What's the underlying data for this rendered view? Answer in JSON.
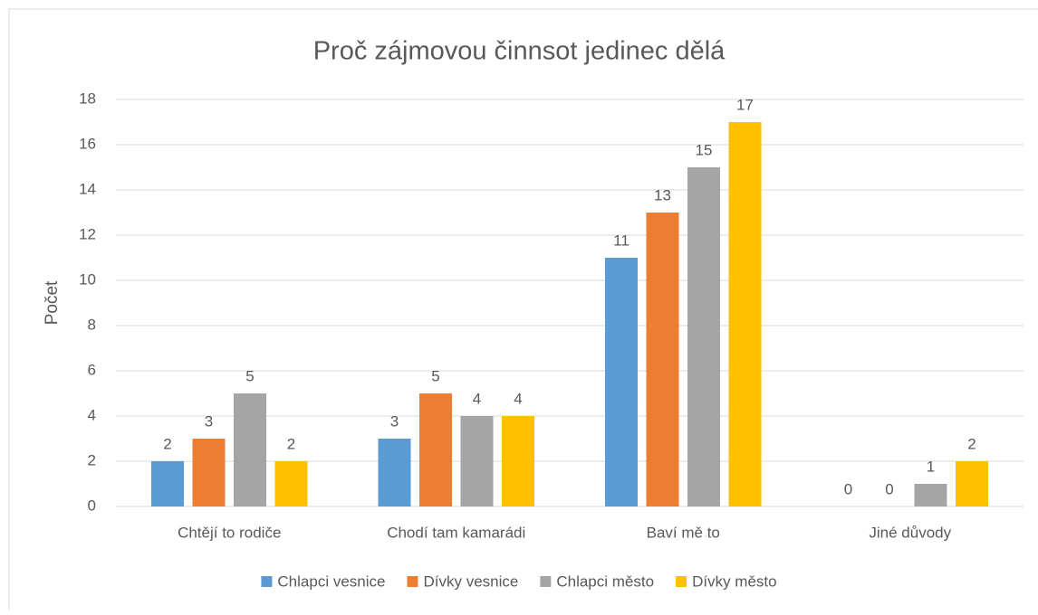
{
  "chart_data": {
    "type": "bar",
    "title": "Proč zájmovou činnsot jedinec dělá",
    "y_label": "Počet",
    "categories": [
      "Chtějí to rodiče",
      "Chodí tam kamarádi",
      "Baví mě to",
      "Jiné důvody"
    ],
    "series": [
      {
        "name": "Chlapci vesnice",
        "color": "#5b9bd5",
        "values": [
          2,
          3,
          11,
          0
        ]
      },
      {
        "name": "Dívky vesnice",
        "color": "#ed7d31",
        "values": [
          3,
          5,
          13,
          0
        ]
      },
      {
        "name": "Chlapci město",
        "color": "#a5a5a5",
        "values": [
          5,
          4,
          15,
          1
        ]
      },
      {
        "name": "Dívky město",
        "color": "#ffc000",
        "values": [
          2,
          4,
          17,
          2
        ]
      }
    ],
    "ylim": [
      0,
      18
    ],
    "yticks": [
      0,
      2,
      4,
      6,
      8,
      10,
      12,
      14,
      16,
      18
    ],
    "grid": true,
    "legend": "bottom"
  }
}
